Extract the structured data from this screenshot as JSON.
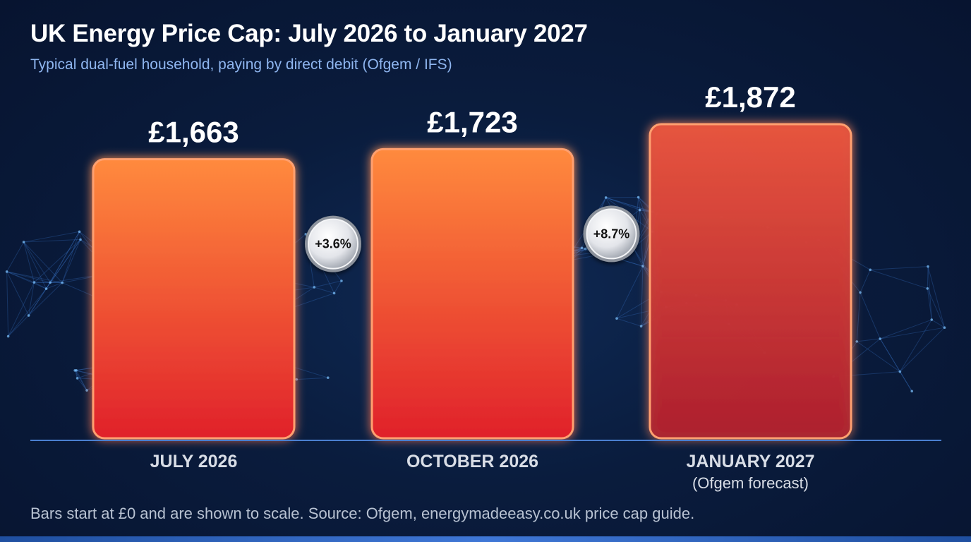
{
  "title": "UK Energy Price Cap: July 2026 to January 2027",
  "subtitle": "Typical dual-fuel household, paying by direct debit (Ofgem / IFS)",
  "footer": "Bars start at £0 and are shown to scale. Source: Ofgem, energymadeeasy.co.uk price cap guide.",
  "colors": {
    "background": "#0a1c3d",
    "bar_top": "#ff8a3d",
    "bar_bottom": "#e0212b",
    "forecast_bar": "#c23a3a",
    "baseline": "#4a7fd0",
    "subtitle": "#8fb6f0"
  },
  "chart_data": {
    "type": "bar",
    "categories": [
      "JULY 2026",
      "OCTOBER 2026",
      "JANUARY 2027"
    ],
    "category_sublabels": [
      "",
      "",
      "(Ofgem forecast)"
    ],
    "values": [
      1663,
      1723,
      1872
    ],
    "value_labels": [
      "£1,663",
      "£1,723",
      "£1,872"
    ],
    "changes": [
      "+3.6%",
      "+8.7%"
    ],
    "ylim": [
      0,
      1872
    ],
    "grid": false,
    "legend": "none"
  }
}
